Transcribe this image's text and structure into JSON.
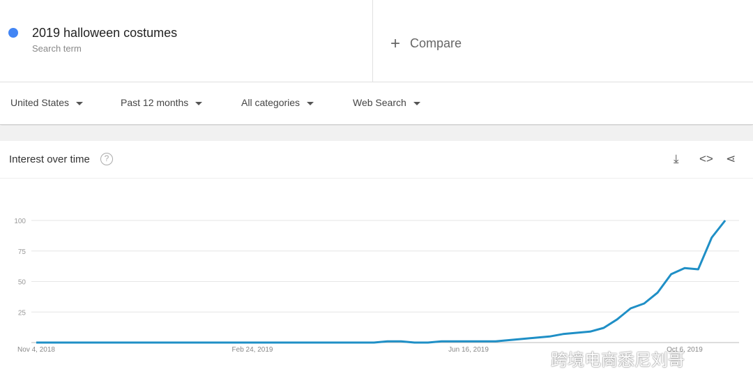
{
  "search_term": {
    "name": "2019 halloween costumes",
    "sublabel": "Search term",
    "color": "#4285f4"
  },
  "compare": {
    "icon": "plus-icon",
    "label": "Compare"
  },
  "filters": [
    {
      "label": "United States"
    },
    {
      "label": "Past 12 months"
    },
    {
      "label": "All categories"
    },
    {
      "label": "Web Search"
    }
  ],
  "card": {
    "title": "Interest over time",
    "icons": [
      "help-icon",
      "download-icon",
      "embed-icon",
      "share-icon"
    ]
  },
  "watermark": "跨境电商悉尼刘哥",
  "chart_data": {
    "type": "line",
    "title": "",
    "xlabel": "",
    "ylabel": "",
    "ylim": [
      0,
      100
    ],
    "yticks": [
      "25",
      "50",
      "75",
      "100"
    ],
    "xtick_labels": [
      "Nov 4, 2018",
      "Feb 24, 2019",
      "Jun 16, 2019",
      "Oct 6, 2019"
    ],
    "x_start": "Nov 4, 2018",
    "x_interval": "weekly",
    "grid": true,
    "line_color": "#1f8fc6",
    "values": [
      0,
      0,
      0,
      0,
      0,
      0,
      0,
      0,
      0,
      0,
      0,
      0,
      0,
      0,
      0,
      0,
      0,
      0,
      0,
      0,
      0,
      0,
      0,
      0,
      0,
      0,
      1,
      1,
      0,
      0,
      1,
      1,
      1,
      1,
      1,
      2,
      3,
      4,
      5,
      7,
      8,
      9,
      12,
      19,
      28,
      32,
      41,
      56,
      61,
      60,
      86,
      100
    ]
  }
}
